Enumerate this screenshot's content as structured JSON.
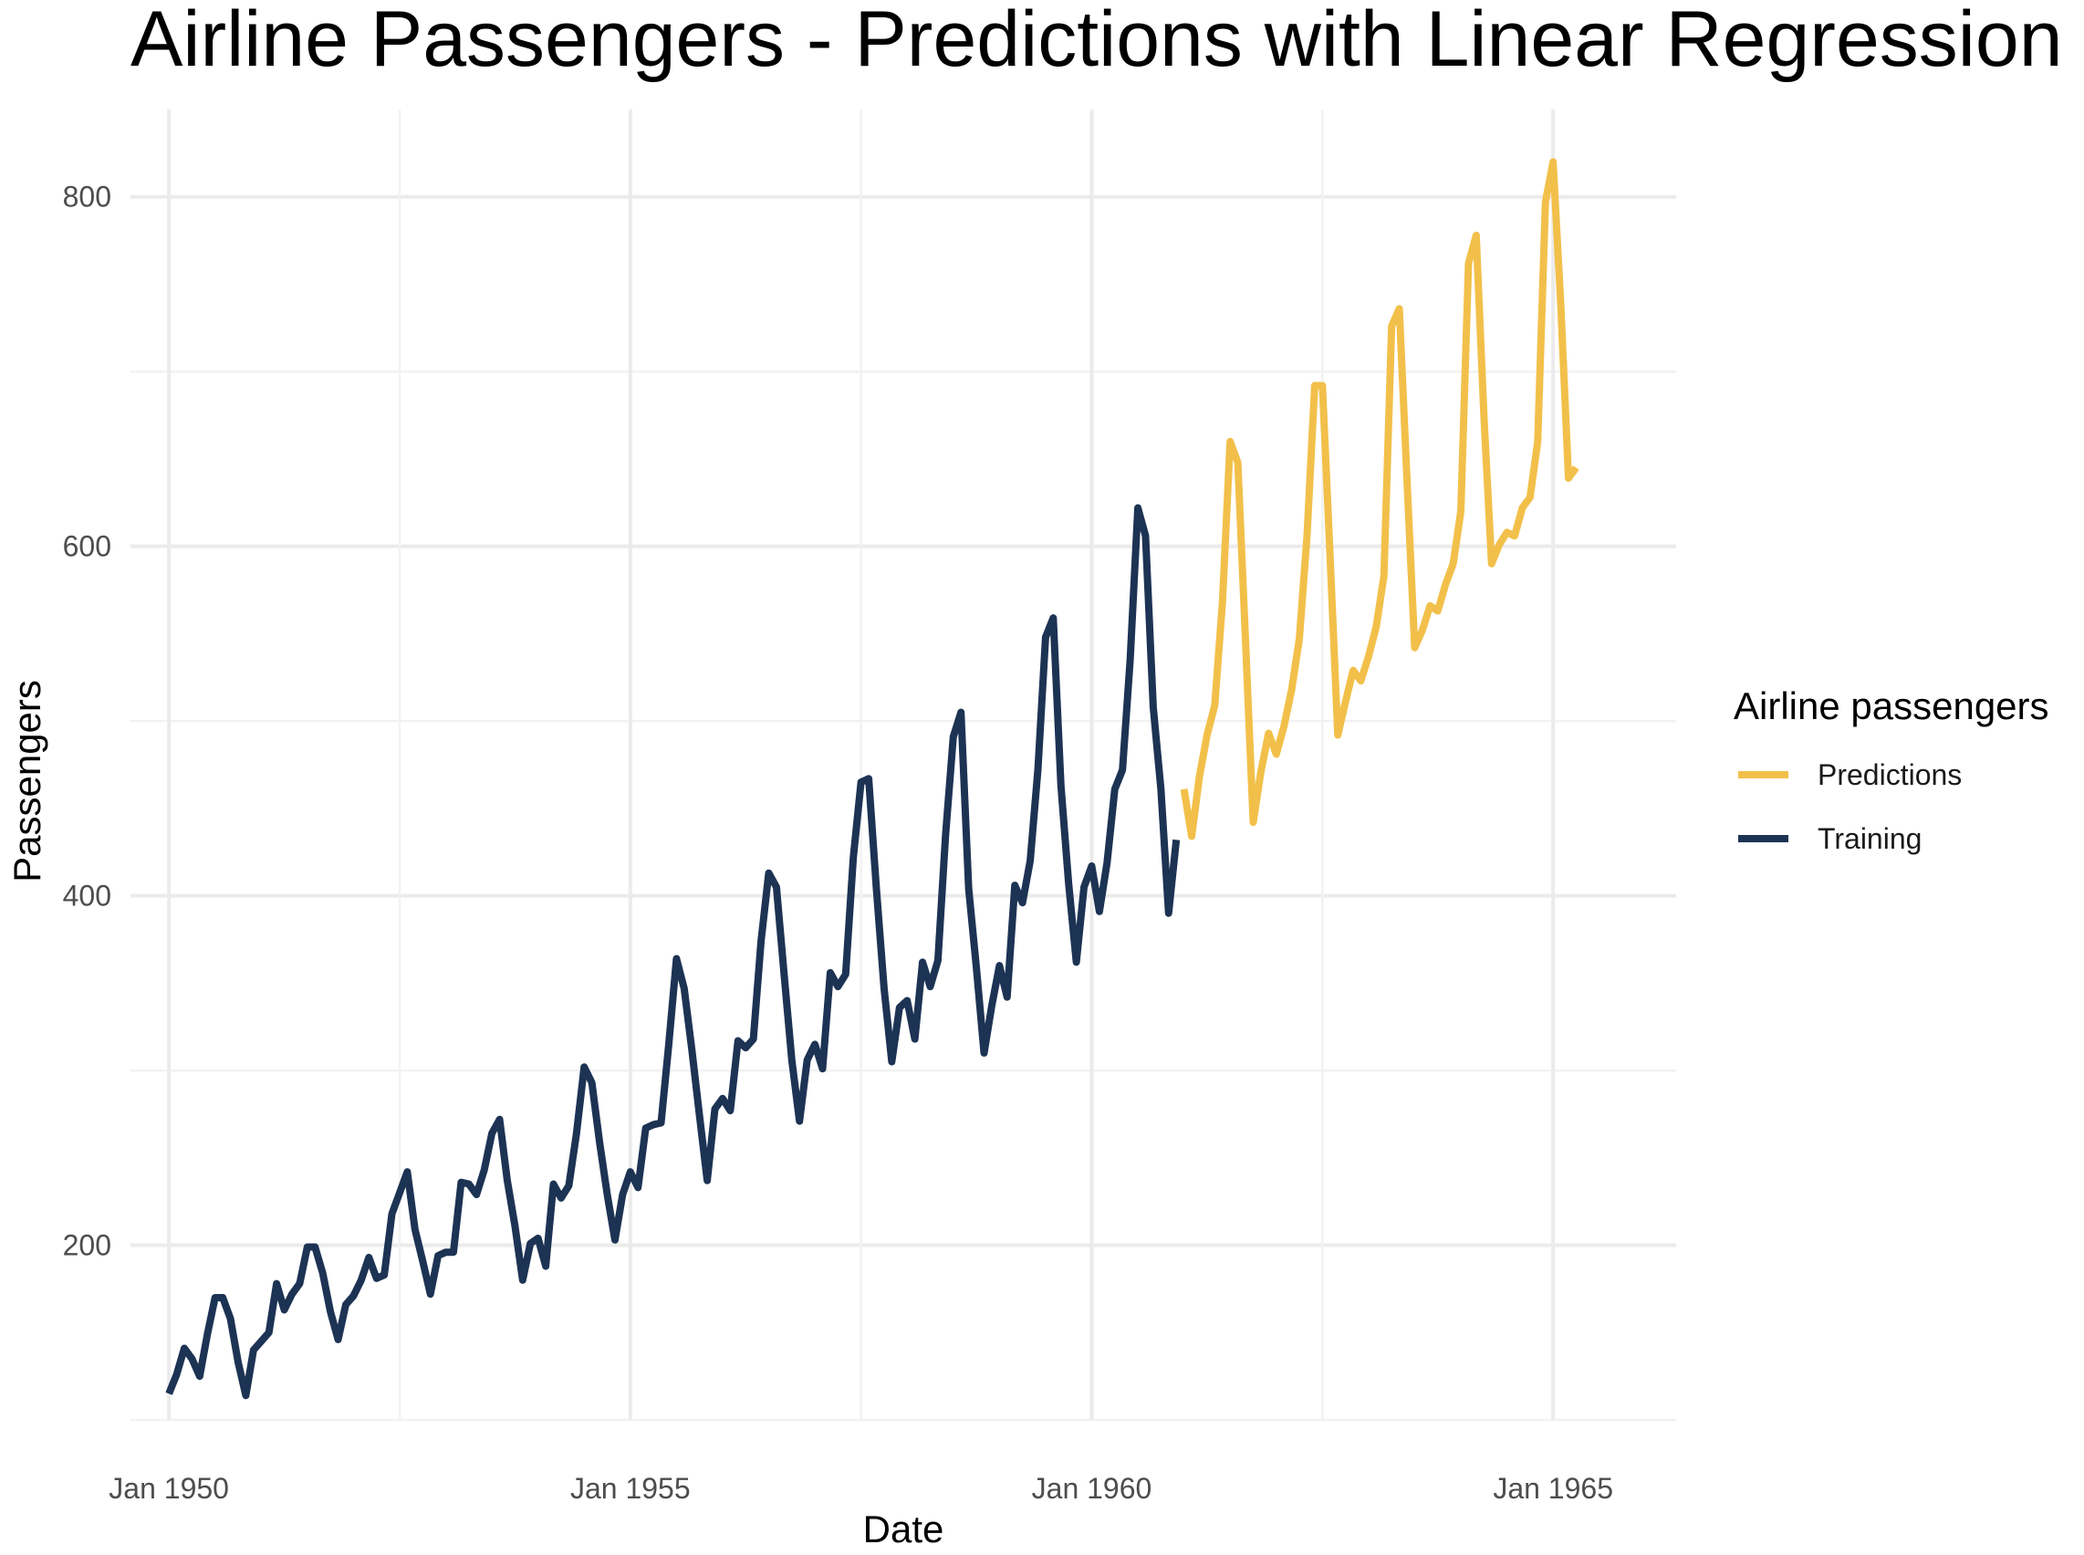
{
  "chart_data": {
    "type": "line",
    "title": "Airline Passengers - Predictions with Linear Regression",
    "xlabel": "Date",
    "ylabel": "Passengers",
    "x_ticks": [
      "Jan 1950",
      "Jan 1955",
      "Jan 1960",
      "Jan 1965"
    ],
    "y_ticks": [
      200,
      400,
      600,
      800
    ],
    "xlim": [
      "1949-08",
      "1966-05"
    ],
    "ylim": [
      100,
      850
    ],
    "grid": true,
    "legend": {
      "title": "Airline passengers",
      "placement": "right"
    },
    "series": [
      {
        "name": "Predictions",
        "color": "#f2c04a",
        "start": "1961-01",
        "frequency": "monthly",
        "values": [
          461,
          434,
          468,
          492,
          509,
          568,
          660,
          648,
          546,
          442,
          471,
          493,
          481,
          497,
          518,
          547,
          606,
          692,
          692,
          594,
          492,
          511,
          529,
          523,
          537,
          554,
          583,
          726,
          736,
          638,
          542,
          552,
          566,
          563,
          578,
          590,
          620,
          762,
          778,
          675,
          590,
          601,
          608,
          606,
          622,
          628,
          660,
          797,
          820,
          738,
          639,
          645
        ]
      },
      {
        "name": "Training",
        "color": "#1d3354",
        "start": "1950-01",
        "frequency": "monthly",
        "values": [
          115,
          126,
          141,
          135,
          125,
          149,
          170,
          170,
          158,
          133,
          114,
          140,
          145,
          150,
          178,
          163,
          172,
          178,
          199,
          199,
          184,
          162,
          146,
          166,
          171,
          180,
          193,
          181,
          183,
          218,
          230,
          242,
          209,
          191,
          172,
          194,
          196,
          196,
          236,
          235,
          229,
          243,
          264,
          272,
          237,
          211,
          180,
          201,
          204,
          188,
          235,
          227,
          234,
          264,
          302,
          293,
          259,
          229,
          203,
          229,
          242,
          233,
          267,
          269,
          270,
          315,
          364,
          347,
          312,
          274,
          237,
          278,
          284,
          277,
          317,
          313,
          318,
          374,
          413,
          405,
          355,
          306,
          271,
          306,
          315,
          301,
          356,
          348,
          355,
          422,
          465,
          467,
          404,
          347,
          305,
          336,
          340,
          318,
          362,
          348,
          363,
          435,
          491,
          505,
          404,
          359,
          310,
          337,
          360,
          342,
          406,
          396,
          420,
          472,
          548,
          559,
          463,
          407,
          362,
          405,
          417,
          391,
          419,
          461,
          472,
          535,
          622,
          606,
          508,
          461,
          390,
          432
        ]
      }
    ]
  }
}
